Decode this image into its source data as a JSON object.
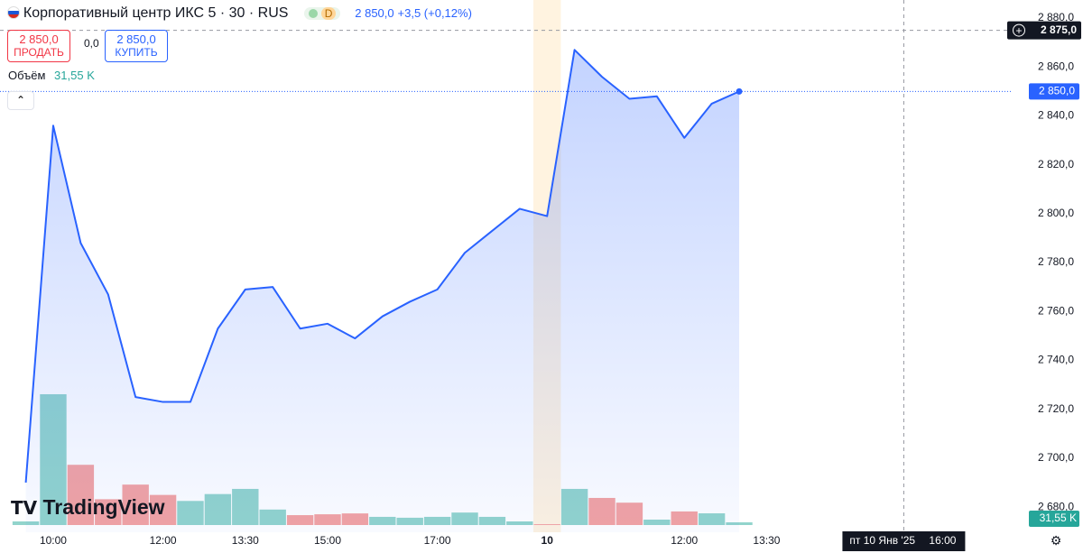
{
  "header": {
    "title": "Корпоративный центр ИКС 5 · 30 · RUS",
    "interval": "D",
    "last": "2 850,0",
    "change": "+3,5 (+0,12%)",
    "sell_price": "2 850,0",
    "sell_label": "ПРОДАТЬ",
    "spread": "0,0",
    "buy_price": "2 850,0",
    "buy_label": "КУПИТЬ",
    "volume_label": "Объём",
    "logo": "TradingView"
  },
  "chart_data": {
    "type": "area",
    "color": "#2962ff",
    "values": [
      2690,
      2836,
      2788,
      2767,
      2725,
      2723,
      2723,
      2753,
      2769,
      2770,
      2753,
      2755,
      2749,
      2758,
      2764,
      2769,
      2784,
      2793,
      2802,
      2799,
      2867,
      2856,
      2847,
      2848,
      2831,
      2845,
      2850
    ],
    "ylim": [
      2669.7,
      2887.4
    ],
    "yticks": [
      {
        "value": 2680,
        "label": "2 680,0"
      },
      {
        "value": 2700,
        "label": "2 700,0"
      },
      {
        "value": 2720,
        "label": "2 720,0"
      },
      {
        "value": 2740,
        "label": "2 740,0"
      },
      {
        "value": 2760,
        "label": "2 760,0"
      },
      {
        "value": 2780,
        "label": "2 780,0"
      },
      {
        "value": 2800,
        "label": "2 800,0"
      },
      {
        "value": 2820,
        "label": "2 820,0"
      },
      {
        "value": 2840,
        "label": "2 840,0"
      },
      {
        "value": 2860,
        "label": "2 860,0"
      },
      {
        "value": 2880,
        "label": "2 880,0"
      }
    ],
    "xlim": [
      -0.94,
      35.9
    ],
    "xticks": [
      {
        "value": 1,
        "label": "10:00"
      },
      {
        "value": 5,
        "label": "12:00"
      },
      {
        "value": 8,
        "label": "13:30"
      },
      {
        "value": 11,
        "label": "15:00"
      },
      {
        "value": 15,
        "label": "17:00"
      },
      {
        "value": 19,
        "label": "10"
      },
      {
        "value": 24,
        "label": "12:00"
      },
      {
        "value": 27,
        "label": "13:30"
      }
    ],
    "last_price": {
      "value": 2850,
      "label": "2 850,0"
    },
    "crosshair": {
      "y": {
        "value": 2875,
        "label": "2 875,0"
      },
      "x": 32,
      "x_date": "пт 10 Янв '25",
      "x_time": "16:00"
    },
    "session_break": 19,
    "volume": {
      "ylim": [
        0,
        1600
      ],
      "values": [
        42,
        1520,
        700,
        300,
        470,
        350,
        280,
        360,
        420,
        180,
        115,
        125,
        135,
        95,
        85,
        95,
        145,
        95,
        42,
        10,
        420,
        315,
        260,
        63,
        158,
        136,
        31.55
      ],
      "colors": [
        "#92d4cc",
        "#92d4cc",
        "#f4a3a2",
        "#f4a3a2",
        "#f4a3a2",
        "#f4a3a2",
        "#92d4cc",
        "#92d4cc",
        "#92d4cc",
        "#92d4cc",
        "#f4a3a2",
        "#f4a3a2",
        "#f4a3a2",
        "#92d4cc",
        "#92d4cc",
        "#92d4cc",
        "#92d4cc",
        "#92d4cc",
        "#92d4cc",
        "#f4a3a2",
        "#92d4cc",
        "#f4a3a2",
        "#f4a3a2",
        "#92d4cc",
        "#f4a3a2",
        "#92d4cc",
        "#92d4cc"
      ],
      "last_label": "31,55 K",
      "last_color": "#26a69a"
    }
  }
}
